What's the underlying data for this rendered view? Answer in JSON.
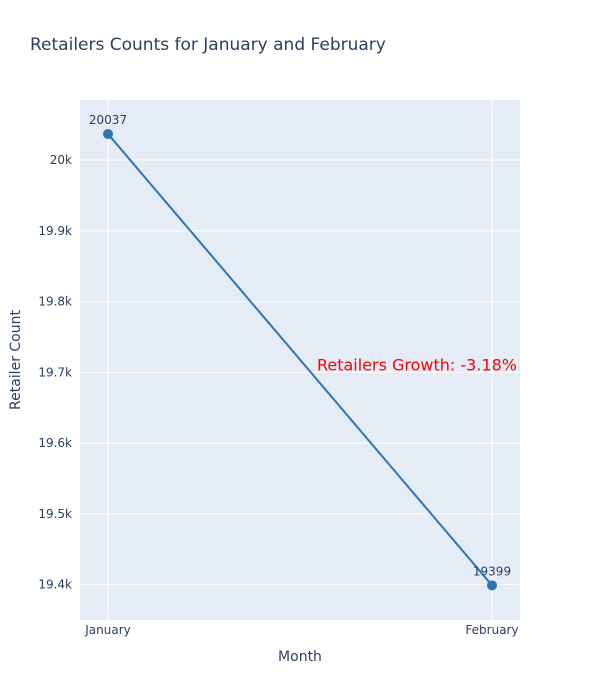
{
  "chart_data": {
    "type": "line",
    "title": "Retailers Counts for January and February",
    "xlabel": "Month",
    "ylabel": "Retailer Count",
    "categories": [
      "January",
      "February"
    ],
    "series": [
      {
        "values": [
          20037,
          19399
        ],
        "data_labels": [
          "20037",
          "19399"
        ],
        "color": "#2e75b6"
      }
    ],
    "ylim": [
      19350,
      20085
    ],
    "yticks": [
      19400,
      19500,
      19600,
      19700,
      19800,
      19900,
      20000
    ],
    "ytick_labels": [
      "19.4k",
      "19.5k",
      "19.6k",
      "19.7k",
      "19.8k",
      "19.9k",
      "20k"
    ],
    "annotation": {
      "text": "Retailers Growth: -3.18%",
      "color": "#ff0000",
      "y": 19710
    },
    "grid": true,
    "plot_background": "#e5ecf6",
    "grid_color": "#ffffff"
  }
}
